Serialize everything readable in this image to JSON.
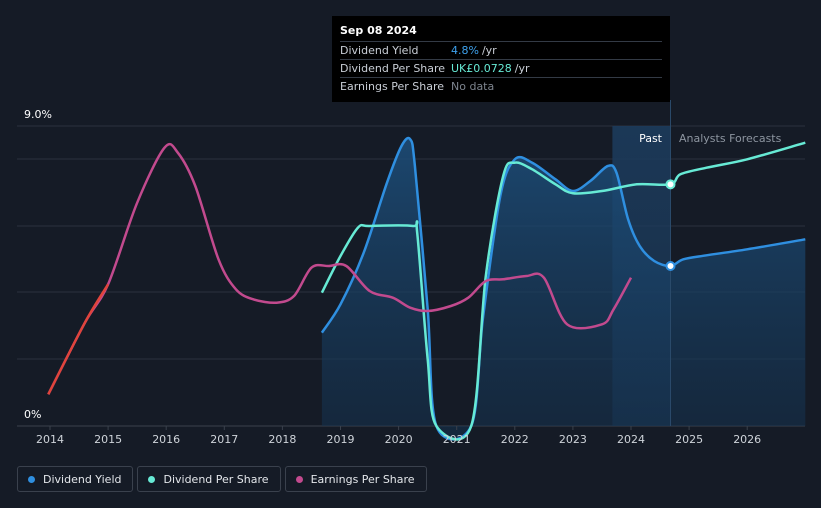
{
  "chart_data": {
    "type": "line",
    "title": "",
    "xlabel": "",
    "ylabel": "",
    "ylim": [
      0,
      9.0
    ],
    "y_tick_labels": [
      "9.0%",
      "0%"
    ],
    "x_tick_labels": [
      "2014",
      "2015",
      "2016",
      "2017",
      "2018",
      "2019",
      "2020",
      "2021",
      "2022",
      "2023",
      "2024",
      "2025",
      "2026"
    ],
    "regions": {
      "past_label": "Past",
      "forecast_label": "Analysts Forecasts",
      "forecast_start": 2024.68
    },
    "series": [
      {
        "name": "Dividend Yield",
        "color": "#2f8fe0",
        "unit": "%",
        "filled": true,
        "points": [
          [
            2018.68,
            2.8
          ],
          [
            2019.0,
            3.65
          ],
          [
            2019.4,
            5.2
          ],
          [
            2019.8,
            7.3
          ],
          [
            2020.05,
            8.4
          ],
          [
            2020.2,
            8.6
          ],
          [
            2020.28,
            7.8
          ],
          [
            2020.5,
            3.5
          ],
          [
            2020.65,
            0.0
          ],
          [
            2021.25,
            0.0
          ],
          [
            2021.45,
            3.2
          ],
          [
            2021.75,
            6.9
          ],
          [
            2022.0,
            8.0
          ],
          [
            2022.3,
            7.9
          ],
          [
            2022.7,
            7.4
          ],
          [
            2023.0,
            7.05
          ],
          [
            2023.3,
            7.35
          ],
          [
            2023.6,
            7.8
          ],
          [
            2023.75,
            7.6
          ],
          [
            2023.95,
            6.2
          ],
          [
            2024.15,
            5.4
          ],
          [
            2024.4,
            4.95
          ],
          [
            2024.68,
            4.8
          ],
          [
            2024.9,
            5.0
          ],
          [
            2025.3,
            5.12
          ],
          [
            2026.0,
            5.3
          ],
          [
            2027.0,
            5.6
          ]
        ]
      },
      {
        "name": "Dividend Per Share",
        "color": "#67ead5",
        "unit": "UK£",
        "filled": false,
        "points": [
          [
            2018.68,
            4.0
          ],
          [
            2019.0,
            5.1
          ],
          [
            2019.3,
            5.95
          ],
          [
            2019.5,
            6.0
          ],
          [
            2020.25,
            6.0
          ],
          [
            2020.32,
            5.8
          ],
          [
            2020.5,
            2.0
          ],
          [
            2020.65,
            0.0
          ],
          [
            2021.25,
            0.0
          ],
          [
            2021.5,
            4.5
          ],
          [
            2021.8,
            7.5
          ],
          [
            2022.0,
            7.9
          ],
          [
            2022.3,
            7.7
          ],
          [
            2022.7,
            7.25
          ],
          [
            2023.0,
            6.98
          ],
          [
            2023.5,
            7.05
          ],
          [
            2024.1,
            7.25
          ],
          [
            2024.68,
            7.25
          ],
          [
            2024.85,
            7.55
          ],
          [
            2025.3,
            7.75
          ],
          [
            2026.0,
            8.0
          ],
          [
            2027.0,
            8.5
          ]
        ]
      },
      {
        "name": "Earnings Per Share",
        "color": "#c24a8e",
        "unit": "",
        "filled": false,
        "points": [
          [
            2013.97,
            0.95
          ],
          [
            2014.6,
            3.1
          ],
          [
            2015.0,
            4.25
          ],
          [
            2015.5,
            6.7
          ],
          [
            2015.97,
            8.35
          ],
          [
            2016.2,
            8.2
          ],
          [
            2016.5,
            7.2
          ],
          [
            2016.9,
            5.0
          ],
          [
            2017.2,
            4.1
          ],
          [
            2017.5,
            3.8
          ],
          [
            2017.9,
            3.7
          ],
          [
            2018.2,
            3.9
          ],
          [
            2018.5,
            4.75
          ],
          [
            2018.8,
            4.8
          ],
          [
            2019.1,
            4.8
          ],
          [
            2019.5,
            4.05
          ],
          [
            2019.9,
            3.85
          ],
          [
            2020.2,
            3.55
          ],
          [
            2020.5,
            3.45
          ],
          [
            2020.9,
            3.6
          ],
          [
            2021.2,
            3.85
          ],
          [
            2021.5,
            4.35
          ],
          [
            2021.8,
            4.4
          ],
          [
            2022.2,
            4.5
          ],
          [
            2022.5,
            4.45
          ],
          [
            2022.9,
            3.05
          ],
          [
            2023.5,
            3.05
          ],
          [
            2023.7,
            3.5
          ],
          [
            2024.0,
            4.45
          ]
        ]
      }
    ]
  },
  "tooltip": {
    "date": "Sep 08 2024",
    "rows": [
      {
        "label": "Dividend Yield",
        "value": "4.8%",
        "unit": "/yr",
        "color": "#3ea2ee"
      },
      {
        "label": "Dividend Per Share",
        "value": "UK£0.0728",
        "unit": "/yr",
        "color": "#67ead5"
      },
      {
        "label": "Earnings Per Share",
        "value": "No data",
        "unit": "",
        "color": "#7d848e"
      }
    ]
  },
  "legend": [
    {
      "label": "Dividend Yield",
      "color": "#2f8fe0"
    },
    {
      "label": "Dividend Per Share",
      "color": "#67ead5"
    },
    {
      "label": "Earnings Per Share",
      "color": "#c24a8e"
    }
  ]
}
